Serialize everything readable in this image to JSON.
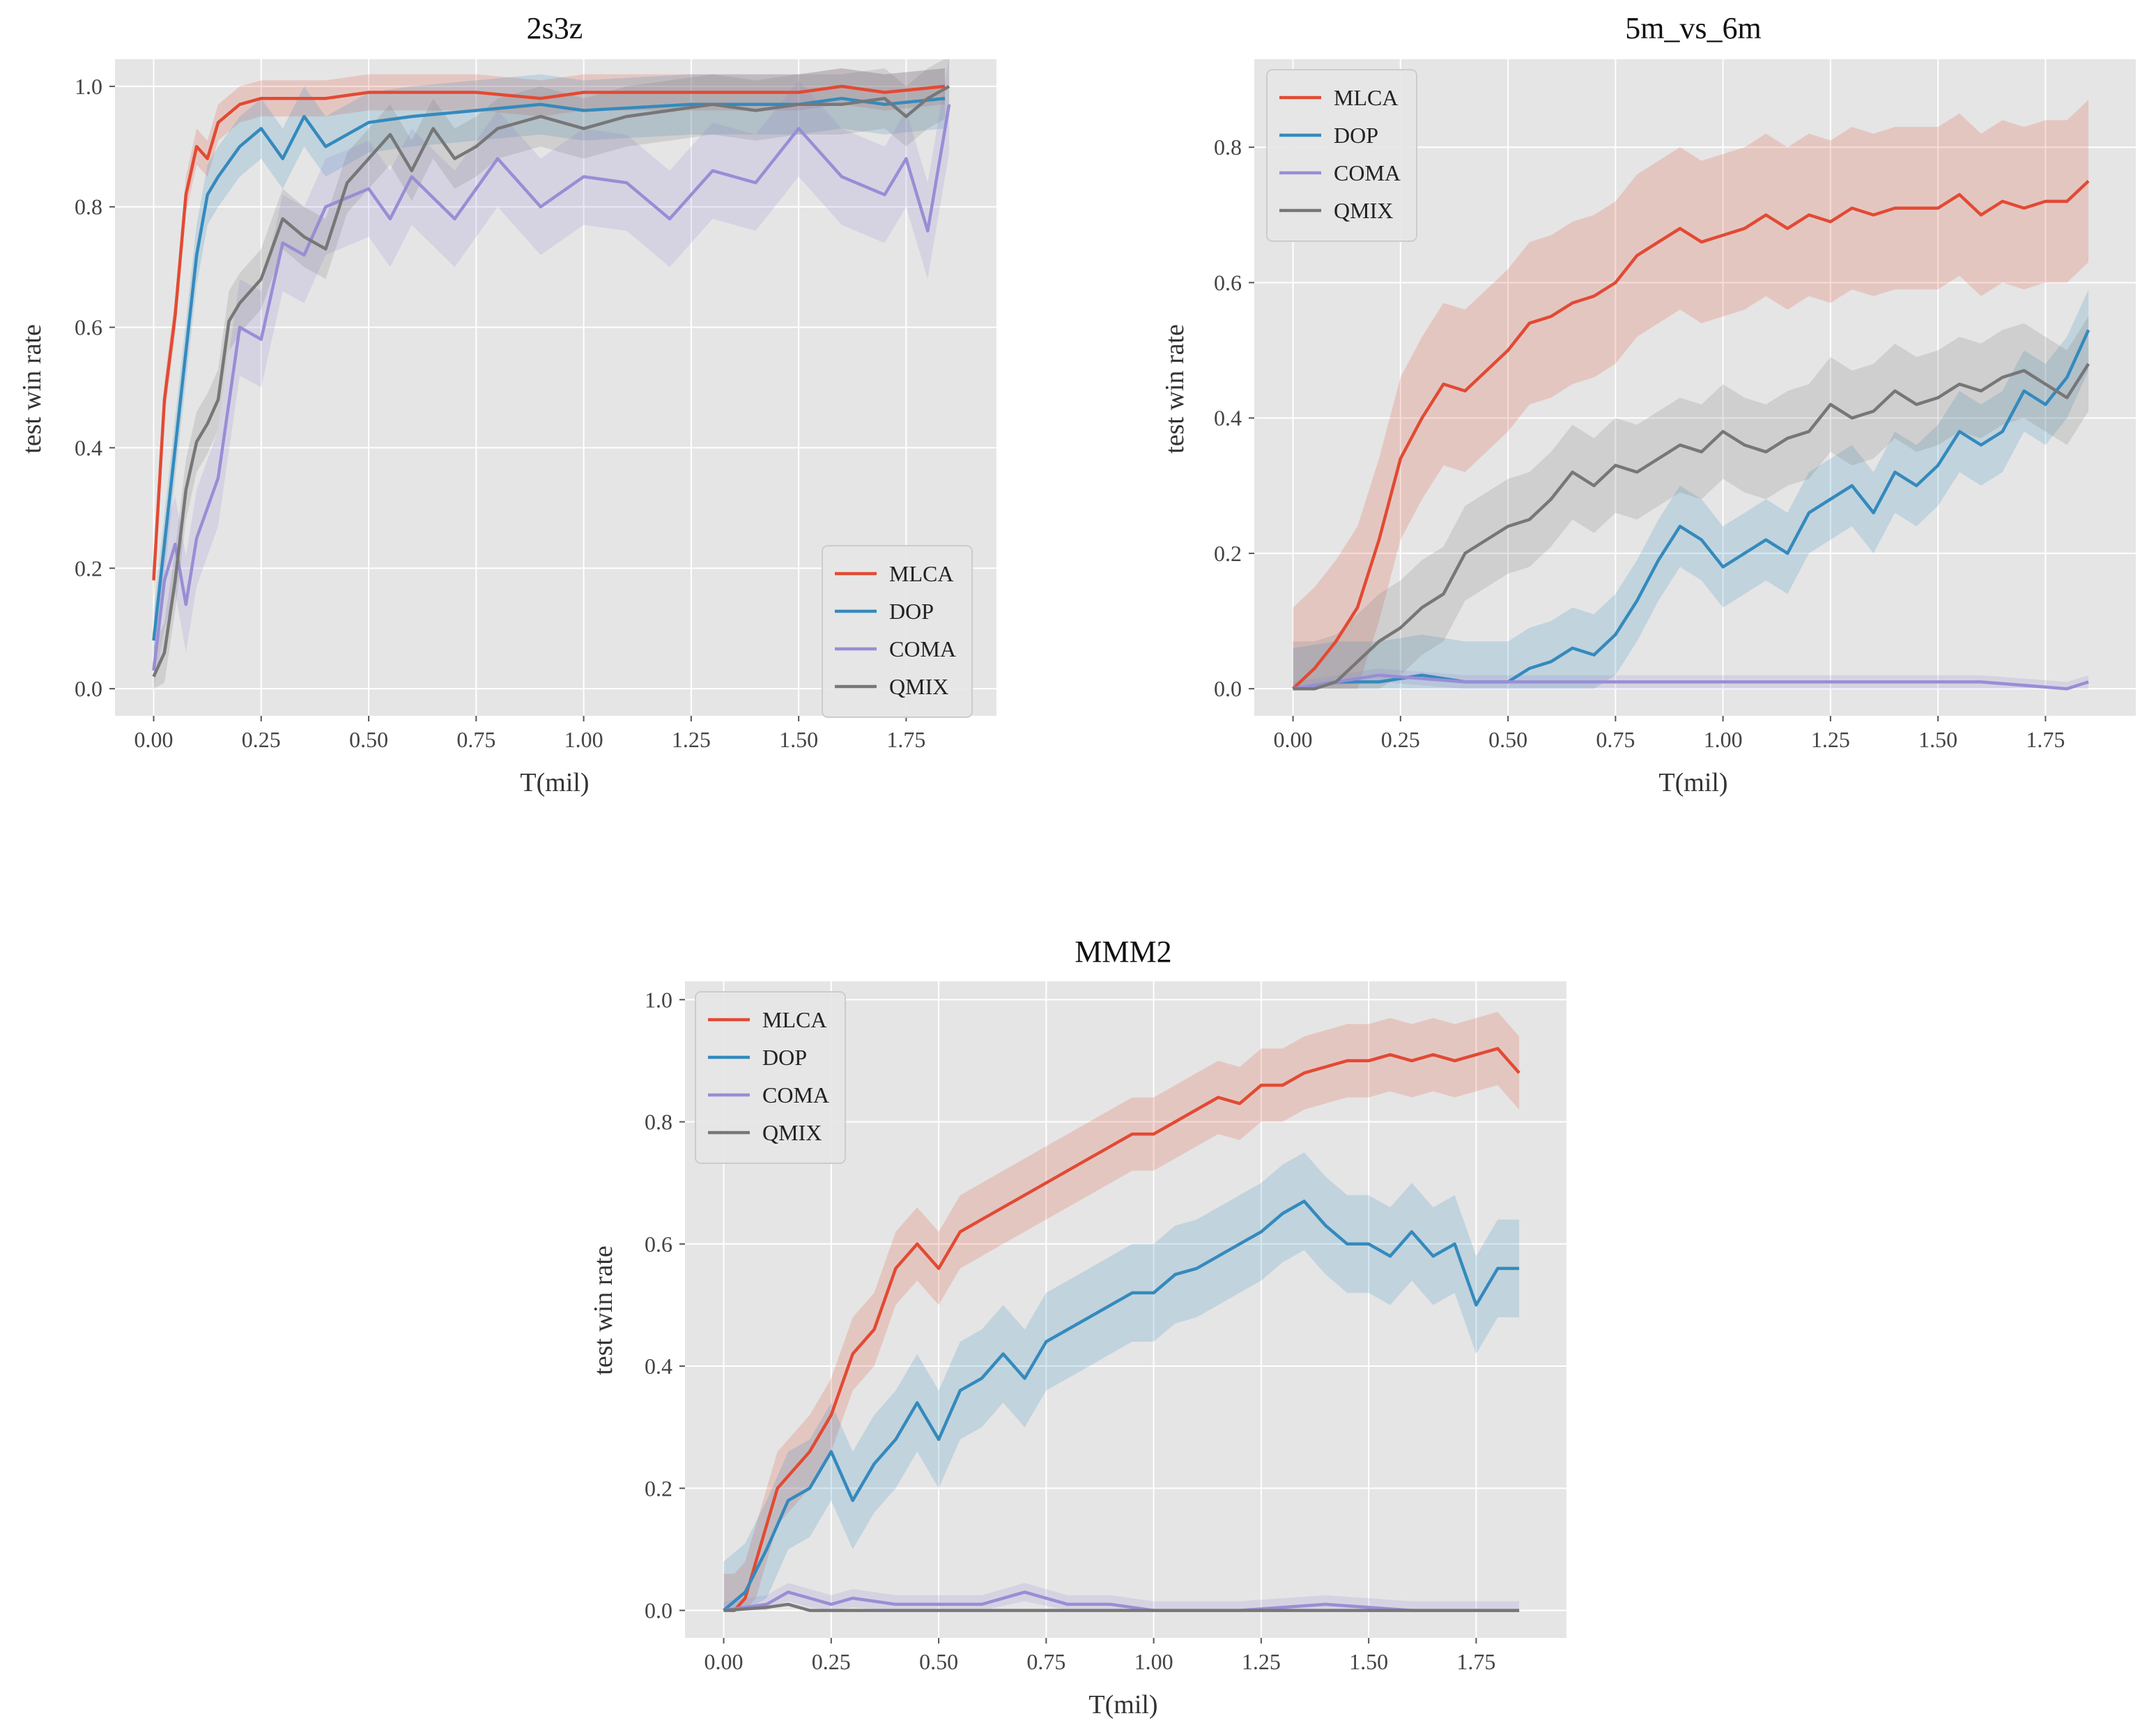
{
  "colors": {
    "MLCA": "#E24A33",
    "DOP": "#348ABD",
    "COMA": "#988ED5",
    "QMIX": "#777777",
    "plot_bg": "#E5E5E5",
    "grid": "#FFFFFF"
  },
  "chart_data": [
    {
      "type": "line",
      "title": "2s3z",
      "xlabel": "T(mil)",
      "ylabel": "test win rate",
      "xlim": [
        -0.09,
        1.96
      ],
      "ylim": [
        -0.045,
        1.045
      ],
      "xticks": [
        0,
        0.25,
        0.5,
        0.75,
        1,
        1.25,
        1.5,
        1.75
      ],
      "xtick_labels": [
        "0.00",
        "0.25",
        "0.50",
        "0.75",
        "1.00",
        "1.25",
        "1.50",
        "1.75"
      ],
      "yticks": [
        0,
        0.2,
        0.4,
        0.6,
        0.8,
        1.0
      ],
      "ytick_labels": [
        "0.0",
        "0.2",
        "0.4",
        "0.6",
        "0.8",
        "1.0"
      ],
      "legend_position": "bottom-right",
      "series": [
        {
          "name": "MLCA",
          "x": [
            0,
            0.025,
            0.05,
            0.075,
            0.1,
            0.125,
            0.15,
            0.2,
            0.25,
            0.3,
            0.4,
            0.5,
            0.6,
            0.75,
            0.9,
            1.0,
            1.25,
            1.5,
            1.6,
            1.7,
            1.84
          ],
          "y": [
            0.18,
            0.48,
            0.62,
            0.82,
            0.9,
            0.88,
            0.94,
            0.97,
            0.98,
            0.98,
            0.98,
            0.99,
            0.99,
            0.99,
            0.98,
            0.99,
            0.99,
            0.99,
            1.0,
            0.99,
            1.0
          ],
          "band": 0.03
        },
        {
          "name": "DOP",
          "x": [
            0,
            0.05,
            0.1,
            0.125,
            0.15,
            0.2,
            0.25,
            0.3,
            0.35,
            0.4,
            0.5,
            0.6,
            0.75,
            0.9,
            1.0,
            1.25,
            1.5,
            1.6,
            1.7,
            1.84
          ],
          "y": [
            0.08,
            0.4,
            0.72,
            0.82,
            0.85,
            0.9,
            0.93,
            0.88,
            0.95,
            0.9,
            0.94,
            0.95,
            0.96,
            0.97,
            0.96,
            0.97,
            0.97,
            0.98,
            0.97,
            0.98
          ],
          "band": 0.05
        },
        {
          "name": "COMA",
          "x": [
            0,
            0.025,
            0.05,
            0.075,
            0.1,
            0.15,
            0.2,
            0.25,
            0.3,
            0.35,
            0.4,
            0.5,
            0.55,
            0.6,
            0.7,
            0.8,
            0.9,
            1.0,
            1.1,
            1.2,
            1.3,
            1.4,
            1.5,
            1.6,
            1.7,
            1.75,
            1.8,
            1.85
          ],
          "y": [
            0.03,
            0.18,
            0.24,
            0.14,
            0.25,
            0.35,
            0.6,
            0.58,
            0.74,
            0.72,
            0.8,
            0.83,
            0.78,
            0.85,
            0.78,
            0.88,
            0.8,
            0.85,
            0.84,
            0.78,
            0.86,
            0.84,
            0.93,
            0.85,
            0.82,
            0.88,
            0.76,
            0.97
          ],
          "band": 0.08
        },
        {
          "name": "QMIX",
          "x": [
            0,
            0.025,
            0.05,
            0.075,
            0.1,
            0.125,
            0.15,
            0.175,
            0.2,
            0.25,
            0.3,
            0.35,
            0.4,
            0.45,
            0.5,
            0.55,
            0.6,
            0.65,
            0.7,
            0.75,
            0.8,
            0.9,
            1.0,
            1.1,
            1.2,
            1.3,
            1.4,
            1.5,
            1.6,
            1.7,
            1.75,
            1.8,
            1.85
          ],
          "y": [
            0.02,
            0.06,
            0.18,
            0.33,
            0.41,
            0.44,
            0.48,
            0.61,
            0.64,
            0.68,
            0.78,
            0.75,
            0.73,
            0.84,
            0.88,
            0.92,
            0.86,
            0.93,
            0.88,
            0.9,
            0.93,
            0.95,
            0.93,
            0.95,
            0.96,
            0.97,
            0.96,
            0.97,
            0.97,
            0.98,
            0.95,
            0.98,
            1.0
          ],
          "band": 0.05
        }
      ]
    },
    {
      "type": "line",
      "title": "5m_vs_6m",
      "xlabel": "T(mil)",
      "ylabel": "test win rate",
      "xlim": [
        -0.09,
        1.96
      ],
      "ylim": [
        -0.04,
        0.93
      ],
      "xticks": [
        0,
        0.25,
        0.5,
        0.75,
        1,
        1.25,
        1.5,
        1.75
      ],
      "xtick_labels": [
        "0.00",
        "0.25",
        "0.50",
        "0.75",
        "1.00",
        "1.25",
        "1.50",
        "1.75"
      ],
      "yticks": [
        0,
        0.2,
        0.4,
        0.6,
        0.8
      ],
      "ytick_labels": [
        "0.0",
        "0.2",
        "0.4",
        "0.6",
        "0.8"
      ],
      "legend_position": "top-left",
      "series": [
        {
          "name": "MLCA",
          "x": [
            0,
            0.05,
            0.1,
            0.15,
            0.2,
            0.25,
            0.3,
            0.35,
            0.4,
            0.45,
            0.5,
            0.55,
            0.6,
            0.65,
            0.7,
            0.75,
            0.8,
            0.85,
            0.9,
            0.95,
            1.0,
            1.05,
            1.1,
            1.15,
            1.2,
            1.25,
            1.3,
            1.35,
            1.4,
            1.45,
            1.5,
            1.55,
            1.6,
            1.65,
            1.7,
            1.75,
            1.8,
            1.85
          ],
          "y": [
            0,
            0.03,
            0.07,
            0.12,
            0.22,
            0.34,
            0.4,
            0.45,
            0.44,
            0.47,
            0.5,
            0.54,
            0.55,
            0.57,
            0.58,
            0.6,
            0.64,
            0.66,
            0.68,
            0.66,
            0.67,
            0.68,
            0.7,
            0.68,
            0.7,
            0.69,
            0.71,
            0.7,
            0.71,
            0.71,
            0.71,
            0.73,
            0.7,
            0.72,
            0.71,
            0.72,
            0.72,
            0.75
          ],
          "band": 0.12
        },
        {
          "name": "DOP",
          "x": [
            0,
            0.1,
            0.2,
            0.3,
            0.4,
            0.5,
            0.55,
            0.6,
            0.65,
            0.7,
            0.75,
            0.8,
            0.85,
            0.9,
            0.95,
            1.0,
            1.05,
            1.1,
            1.15,
            1.2,
            1.25,
            1.3,
            1.35,
            1.4,
            1.45,
            1.5,
            1.55,
            1.6,
            1.65,
            1.7,
            1.75,
            1.8,
            1.85
          ],
          "y": [
            0,
            0.01,
            0.01,
            0.02,
            0.01,
            0.01,
            0.03,
            0.04,
            0.06,
            0.05,
            0.08,
            0.13,
            0.19,
            0.24,
            0.22,
            0.18,
            0.2,
            0.22,
            0.2,
            0.26,
            0.28,
            0.3,
            0.26,
            0.32,
            0.3,
            0.33,
            0.38,
            0.36,
            0.38,
            0.44,
            0.42,
            0.46,
            0.53
          ],
          "band": 0.06
        },
        {
          "name": "COMA",
          "x": [
            0,
            0.2,
            0.4,
            0.6,
            0.8,
            1.0,
            1.2,
            1.4,
            1.6,
            1.8,
            1.85
          ],
          "y": [
            0,
            0.02,
            0.01,
            0.01,
            0.01,
            0.01,
            0.01,
            0.01,
            0.01,
            0.0,
            0.01
          ],
          "band": 0.01
        },
        {
          "name": "QMIX",
          "x": [
            0,
            0.05,
            0.1,
            0.15,
            0.2,
            0.25,
            0.3,
            0.35,
            0.4,
            0.45,
            0.5,
            0.55,
            0.6,
            0.65,
            0.7,
            0.75,
            0.8,
            0.85,
            0.9,
            0.95,
            1.0,
            1.05,
            1.1,
            1.15,
            1.2,
            1.25,
            1.3,
            1.35,
            1.4,
            1.45,
            1.5,
            1.55,
            1.6,
            1.65,
            1.7,
            1.75,
            1.8,
            1.85
          ],
          "y": [
            0,
            0,
            0.01,
            0.04,
            0.07,
            0.09,
            0.12,
            0.14,
            0.2,
            0.22,
            0.24,
            0.25,
            0.28,
            0.32,
            0.3,
            0.33,
            0.32,
            0.34,
            0.36,
            0.35,
            0.38,
            0.36,
            0.35,
            0.37,
            0.38,
            0.42,
            0.4,
            0.41,
            0.44,
            0.42,
            0.43,
            0.45,
            0.44,
            0.46,
            0.47,
            0.45,
            0.43,
            0.48
          ],
          "band": 0.07
        }
      ]
    },
    {
      "type": "line",
      "title": "MMM2",
      "xlabel": "T(mil)",
      "ylabel": "test win rate",
      "xlim": [
        -0.09,
        1.96
      ],
      "ylim": [
        -0.045,
        1.03
      ],
      "xticks": [
        0,
        0.25,
        0.5,
        0.75,
        1,
        1.25,
        1.5,
        1.75
      ],
      "xtick_labels": [
        "0.00",
        "0.25",
        "0.50",
        "0.75",
        "1.00",
        "1.25",
        "1.50",
        "1.75"
      ],
      "yticks": [
        0,
        0.2,
        0.4,
        0.6,
        0.8,
        1.0
      ],
      "ytick_labels": [
        "0.0",
        "0.2",
        "0.4",
        "0.6",
        "0.8",
        "1.0"
      ],
      "legend_position": "top-left",
      "series": [
        {
          "name": "MLCA",
          "x": [
            0,
            0.025,
            0.05,
            0.075,
            0.1,
            0.125,
            0.15,
            0.2,
            0.25,
            0.3,
            0.35,
            0.4,
            0.45,
            0.5,
            0.55,
            0.6,
            0.65,
            0.7,
            0.75,
            0.8,
            0.85,
            0.9,
            0.95,
            1.0,
            1.05,
            1.1,
            1.15,
            1.2,
            1.25,
            1.3,
            1.35,
            1.4,
            1.45,
            1.5,
            1.55,
            1.6,
            1.65,
            1.7,
            1.75,
            1.8,
            1.85
          ],
          "y": [
            0,
            0,
            0.02,
            0.08,
            0.14,
            0.2,
            0.22,
            0.26,
            0.32,
            0.42,
            0.46,
            0.56,
            0.6,
            0.56,
            0.62,
            0.64,
            0.66,
            0.68,
            0.7,
            0.72,
            0.74,
            0.76,
            0.78,
            0.78,
            0.8,
            0.82,
            0.84,
            0.83,
            0.86,
            0.86,
            0.88,
            0.89,
            0.9,
            0.9,
            0.91,
            0.9,
            0.91,
            0.9,
            0.91,
            0.92,
            0.88
          ],
          "band": 0.06
        },
        {
          "name": "DOP",
          "x": [
            0,
            0.05,
            0.1,
            0.15,
            0.2,
            0.25,
            0.3,
            0.35,
            0.4,
            0.45,
            0.5,
            0.55,
            0.6,
            0.65,
            0.7,
            0.75,
            0.8,
            0.85,
            0.9,
            0.95,
            1.0,
            1.05,
            1.1,
            1.15,
            1.2,
            1.25,
            1.3,
            1.35,
            1.4,
            1.45,
            1.5,
            1.55,
            1.6,
            1.65,
            1.7,
            1.75,
            1.8,
            1.85
          ],
          "y": [
            0,
            0.03,
            0.1,
            0.18,
            0.2,
            0.26,
            0.18,
            0.24,
            0.28,
            0.34,
            0.28,
            0.36,
            0.38,
            0.42,
            0.38,
            0.44,
            0.46,
            0.48,
            0.5,
            0.52,
            0.52,
            0.55,
            0.56,
            0.58,
            0.6,
            0.62,
            0.65,
            0.67,
            0.63,
            0.6,
            0.6,
            0.58,
            0.62,
            0.58,
            0.6,
            0.5,
            0.56,
            0.56
          ],
          "band": 0.08
        },
        {
          "name": "COMA",
          "x": [
            0,
            0.1,
            0.15,
            0.2,
            0.25,
            0.3,
            0.4,
            0.5,
            0.6,
            0.7,
            0.8,
            0.9,
            1.0,
            1.2,
            1.4,
            1.6,
            1.7,
            1.85
          ],
          "y": [
            0,
            0.01,
            0.03,
            0.02,
            0.01,
            0.02,
            0.01,
            0.01,
            0.01,
            0.03,
            0.01,
            0.01,
            0.0,
            0.0,
            0.01,
            0.0,
            0.0,
            0.0
          ],
          "band": 0.015
        },
        {
          "name": "QMIX",
          "x": [
            0,
            0.1,
            0.15,
            0.2,
            0.5,
            1.0,
            1.5,
            1.85
          ],
          "y": [
            0,
            0.005,
            0.01,
            0.0,
            0.0,
            0.0,
            0.0,
            0.0
          ],
          "band": 0
        }
      ]
    }
  ]
}
